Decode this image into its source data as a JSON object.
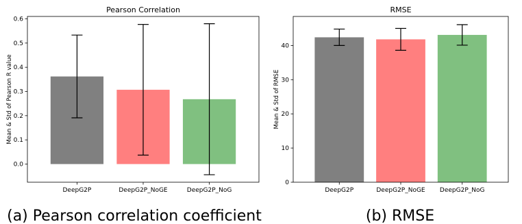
{
  "panels": [
    {
      "caption": "(a) Pearson correlation coefficient"
    },
    {
      "caption": "(b) RMSE"
    }
  ],
  "chart_data": [
    {
      "type": "bar",
      "title": "Pearson Correlation",
      "xlabel": "",
      "ylabel": "Mean & Std of Pearson R value",
      "categories": [
        "DeepG2P",
        "DeepG2P_NoGE",
        "DeepG2P_NoG"
      ],
      "values": [
        0.362,
        0.307,
        0.268
      ],
      "error": [
        0.171,
        0.27,
        0.312
      ],
      "colors": [
        "#808080",
        "#ff7f7f",
        "#80c080"
      ],
      "ylim": [
        -0.075,
        0.61
      ],
      "yticks": [
        0.0,
        0.1,
        0.2,
        0.3,
        0.4,
        0.5,
        0.6
      ],
      "ytick_labels": [
        "0.0",
        "0.1",
        "0.2",
        "0.3",
        "0.4",
        "0.5",
        "0.6"
      ],
      "grid": false
    },
    {
      "type": "bar",
      "title": "RMSE",
      "xlabel": "",
      "ylabel": "Mean & Std of RMSE",
      "categories": [
        "DeepG2P",
        "DeepG2P_NoGE",
        "DeepG2P_NoG"
      ],
      "values": [
        42.4,
        41.8,
        43.1
      ],
      "error": [
        2.4,
        3.2,
        3.0
      ],
      "colors": [
        "#808080",
        "#ff7f7f",
        "#80c080"
      ],
      "ylim": [
        0,
        48.5
      ],
      "yticks": [
        0,
        10,
        20,
        30,
        40
      ],
      "ytick_labels": [
        "0",
        "10",
        "20",
        "30",
        "40"
      ],
      "grid": false
    }
  ]
}
